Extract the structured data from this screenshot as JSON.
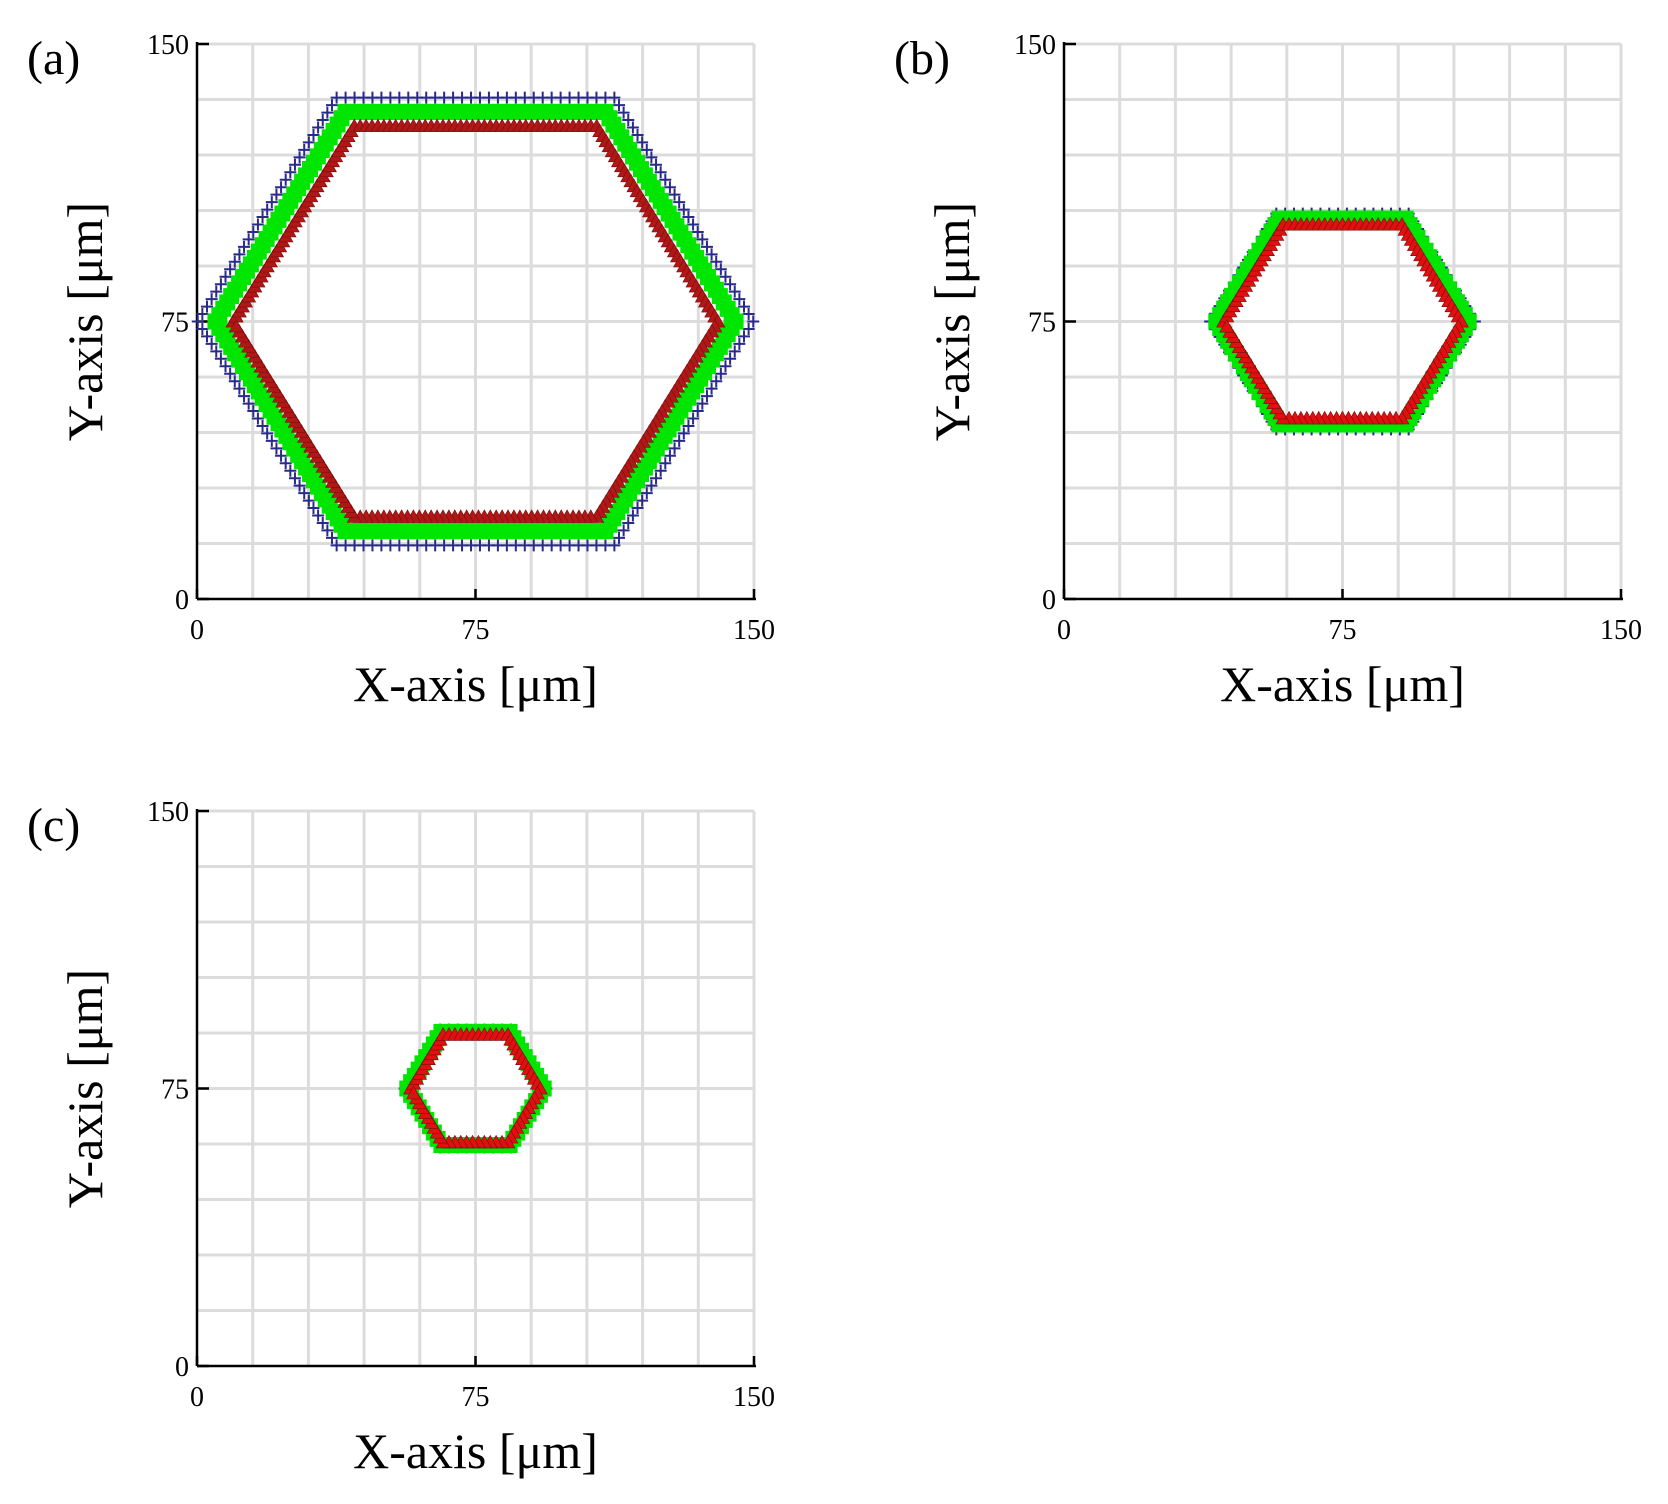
{
  "chart_data": [
    {
      "panel": "(a)",
      "type": "scatter",
      "xlabel": "X-axis [μm]",
      "ylabel": "Y-axis [μm]",
      "xlim": [
        0,
        150
      ],
      "ylim": [
        0,
        150
      ],
      "xticks": [
        "0",
        "75",
        "150"
      ],
      "yticks": [
        "0",
        "75",
        "150"
      ],
      "grid": true,
      "hexagon": {
        "cx": 75,
        "cy": 75,
        "half_width": 68,
        "half_height": 55
      },
      "series": [
        {
          "name": "outer",
          "marker": "cross",
          "color": "#2a2a8c",
          "scale": 1.1
        },
        {
          "name": "middle",
          "marker": "square",
          "color": "#00e600",
          "scale": 1.03
        },
        {
          "name": "inner",
          "marker": "triangle",
          "color": "#b01818",
          "scale": 0.96
        }
      ]
    },
    {
      "panel": "(b)",
      "type": "scatter",
      "xlabel": "X-axis [μm]",
      "ylabel": "Y-axis [μm]",
      "xlim": [
        0,
        150
      ],
      "ylim": [
        0,
        150
      ],
      "xticks": [
        "0",
        "75",
        "150"
      ],
      "yticks": [
        "0",
        "75",
        "150"
      ],
      "grid": true,
      "hexagon": {
        "cx": 75,
        "cy": 75,
        "half_width": 33,
        "half_height": 27
      },
      "series": [
        {
          "name": "outer",
          "marker": "cross",
          "color": "#2a2a8c",
          "scale": 1.08
        },
        {
          "name": "middle",
          "marker": "square",
          "color": "#00e600",
          "scale": 1.03
        },
        {
          "name": "inner",
          "marker": "triangle",
          "color": "#e01010",
          "scale": 0.97
        }
      ]
    },
    {
      "panel": "(c)",
      "type": "scatter",
      "xlabel": "X-axis [μm]",
      "ylabel": "Y-axis [μm]",
      "xlim": [
        0,
        150
      ],
      "ylim": [
        0,
        150
      ],
      "xticks": [
        "0",
        "75",
        "150"
      ],
      "yticks": [
        "0",
        "75",
        "150"
      ],
      "grid": true,
      "hexagon": {
        "cx": 75,
        "cy": 75,
        "half_width": 18,
        "half_height": 15
      },
      "series": [
        {
          "name": "outer",
          "marker": "cross",
          "color": "#2a2a8c",
          "scale": 1.06
        },
        {
          "name": "middle",
          "marker": "square",
          "color": "#00e600",
          "scale": 1.02
        },
        {
          "name": "inner",
          "marker": "triangle",
          "color": "#e01010",
          "scale": 0.97
        }
      ]
    }
  ]
}
